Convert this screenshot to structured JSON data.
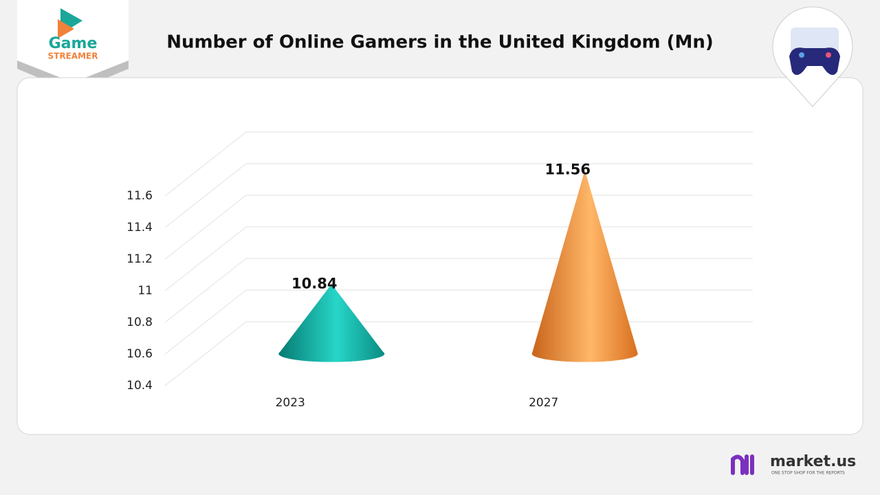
{
  "branding": {
    "logo_top": "Game",
    "logo_bottom": "STREAMER",
    "publisher": "market.us",
    "publisher_tagline": "ONE STOP SHOP FOR THE REPORTS"
  },
  "chart_data": {
    "type": "bar",
    "title": "Number of Online Gamers in the United Kingdom (Mn)",
    "categories": [
      "2023",
      "2027"
    ],
    "values": [
      10.84,
      11.56
    ],
    "colors": [
      "#12b3a7",
      "#f2943a"
    ],
    "ylim": [
      10.4,
      11.6
    ],
    "yticks": [
      10.4,
      10.6,
      10.8,
      11,
      11.2,
      11.4,
      11.6
    ],
    "grid": true
  }
}
